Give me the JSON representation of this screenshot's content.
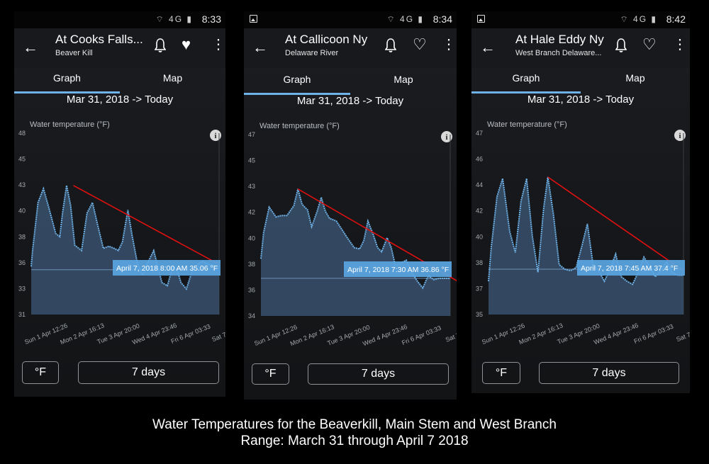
{
  "screens": [
    {
      "title": "At Cooks Falls...",
      "subtitle": "Beaver Kill",
      "time": "8:33",
      "favorite": true,
      "tabs": [
        "Graph",
        "Map"
      ],
      "range": "Mar 31, 2018 -> Today",
      "chart_data": {
        "type": "area",
        "ylabel": "Water temperature (°F)",
        "yticks": [
          "31",
          "33",
          "36",
          "38",
          "40",
          "43",
          "45",
          "48"
        ],
        "ylim": [
          31,
          48
        ],
        "xticks": [
          "Sun 1 Apr 12:26",
          "Mon 2 Apr 16:13",
          "Tue 3 Apr 20:00",
          "Wed 4 Apr 23:46",
          "Fri 6 Apr 03:33",
          "Sat 7 Apr 0"
        ],
        "xlim": [
          0,
          6.9
        ],
        "x": [
          0,
          0.05,
          0.25,
          0.45,
          0.65,
          0.9,
          1.05,
          1.15,
          1.3,
          1.45,
          1.6,
          1.85,
          2.05,
          2.25,
          2.45,
          2.65,
          2.85,
          3.05,
          3.2,
          3.35,
          3.55,
          3.7,
          3.9,
          4.1,
          4.25,
          4.5,
          4.65,
          4.8,
          5.0,
          5.2,
          5.35,
          5.5,
          5.7,
          5.9,
          6.1,
          6.3,
          6.5,
          6.7,
          6.9
        ],
        "y": [
          35.5,
          37.0,
          41.5,
          42.8,
          41.0,
          38.6,
          38.3,
          40.5,
          43.1,
          41.2,
          37.5,
          37.0,
          40.5,
          41.5,
          39.3,
          37.2,
          37.4,
          37.2,
          37.0,
          37.8,
          40.8,
          38.5,
          35.8,
          34.7,
          35.7,
          37.0,
          35.5,
          34.0,
          33.7,
          35.5,
          35.3,
          34.0,
          33.4,
          35.0,
          35.7,
          36.0,
          35.7,
          35.6,
          35.5
        ],
        "baseline": 35.2,
        "trend": {
          "x": [
            1.55,
            6.9
          ],
          "y": [
            43.1,
            35.7
          ]
        },
        "tooltip": "April 7, 2018 8:00 AM  35.06 °F"
      },
      "unit_button": "°F",
      "period_button": "7 days"
    },
    {
      "title": "At Callicoon Ny",
      "subtitle": "Delaware River",
      "time": "8:34",
      "favorite": false,
      "tabs": [
        "Graph",
        "Map"
      ],
      "range": "Mar 31, 2018 -> Today",
      "chart_data": {
        "type": "area",
        "ylabel": "Water temperature (°F)",
        "yticks": [
          "34",
          "36",
          "38",
          "40",
          "42",
          "43",
          "45",
          "47"
        ],
        "ylim": [
          34,
          47
        ],
        "xticks": [
          "Sun 1 Apr 12:26",
          "Mon 2 Apr 16:13",
          "Tue 3 Apr 20:00",
          "Wed 4 Apr 23:46",
          "Fri 6 Apr 03:33",
          "Sat 7 Apr"
        ],
        "xlim": [
          0,
          6.9
        ],
        "x": [
          0,
          0.1,
          0.3,
          0.55,
          0.75,
          0.95,
          1.2,
          1.35,
          1.5,
          1.7,
          1.85,
          2.05,
          2.2,
          2.35,
          2.5,
          2.75,
          2.95,
          3.15,
          3.4,
          3.6,
          3.75,
          3.9,
          4.1,
          4.25,
          4.4,
          4.6,
          4.75,
          4.9,
          5.1,
          5.3,
          5.5,
          5.7,
          5.9,
          6.1,
          6.3,
          6.5,
          6.9
        ],
        "y": [
          38.1,
          40.0,
          41.8,
          41.1,
          41.2,
          41.2,
          41.9,
          43.1,
          42.0,
          41.6,
          40.4,
          41.5,
          42.5,
          41.5,
          41.0,
          40.8,
          40.2,
          39.6,
          38.9,
          38.8,
          39.4,
          40.8,
          39.8,
          38.9,
          38.6,
          39.6,
          38.9,
          37.6,
          37.8,
          38.0,
          37.1,
          36.5,
          36.0,
          36.9,
          36.6,
          36.7,
          36.7
        ],
        "baseline": 36.7,
        "trend": {
          "x": [
            1.35,
            7.6
          ],
          "y": [
            43.1,
            36.0
          ]
        },
        "tooltip": "April 7, 2018 7:30 AM  36.86 °F"
      },
      "unit_button": "°F",
      "period_button": "7 days"
    },
    {
      "title": "At Hale Eddy Ny",
      "subtitle": "West Branch Delaware...",
      "time": "8:42",
      "favorite": false,
      "tabs": [
        "Graph",
        "Map"
      ],
      "range": "Mar 31, 2018 -> Today",
      "chart_data": {
        "type": "area",
        "ylabel": "Water temperature (°F)",
        "yticks": [
          "35",
          "37",
          "38",
          "40",
          "42",
          "44",
          "46",
          "47"
        ],
        "ylim": [
          35,
          47
        ],
        "xticks": [
          "Sun 1 Apr 12:26",
          "Mon 2 Apr 16:13",
          "Tue 3 Apr 20:00",
          "Wed 4 Apr 23:46",
          "Fri 6 Apr 03:33",
          "Sat 7 Apr 0"
        ],
        "xlim": [
          0,
          6.9
        ],
        "x": [
          0,
          0.1,
          0.3,
          0.5,
          0.75,
          0.95,
          1.15,
          1.35,
          1.55,
          1.75,
          1.95,
          2.1,
          2.3,
          2.5,
          2.7,
          2.9,
          3.1,
          3.3,
          3.5,
          3.7,
          3.9,
          4.1,
          4.3,
          4.5,
          4.7,
          4.9,
          5.1,
          5.3,
          5.5,
          5.7,
          5.9,
          6.1,
          6.3,
          6.5,
          6.7,
          6.9
        ],
        "y": [
          37.2,
          39.5,
          42.8,
          44.0,
          40.5,
          39.1,
          42.5,
          44.0,
          40.2,
          37.8,
          42.0,
          44.1,
          41.6,
          38.3,
          38.0,
          37.9,
          38.1,
          39.5,
          41.0,
          38.3,
          37.9,
          37.2,
          38.0,
          39.0,
          37.5,
          37.2,
          37.0,
          37.8,
          38.8,
          38.2,
          37.5,
          37.9,
          38.5,
          37.8,
          37.6,
          37.6
        ],
        "baseline": 38.0,
        "trend": {
          "x": [
            2.1,
            6.9
          ],
          "y": [
            44.1,
            37.9
          ]
        },
        "tooltip": "April 7, 2018 7:45 AM  37.4 °F"
      },
      "unit_button": "°F",
      "period_button": "7 days"
    }
  ],
  "caption": {
    "line1": "Water Temperatures for the Beaverkill, Main Stem and West Branch",
    "line2": "Range: March 31 through April 7 2018"
  },
  "colors": {
    "line": "#6fb2e8",
    "area": "#3d5978",
    "trend": "#e01010",
    "tooltip_bg": "#5aa6e3",
    "tab_underline": "#6fb2e8"
  }
}
